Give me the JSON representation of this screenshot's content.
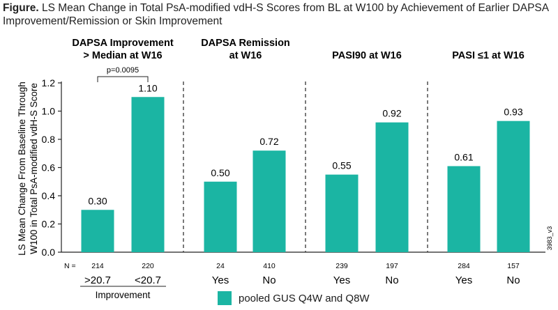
{
  "figure": {
    "label": "Figure.",
    "title": "LS Mean Change in Total PsA-modified vdH-S Scores from BL at W100 by Achievement of Earlier DAPSA Improvement/Remission or Skin Improvement"
  },
  "colors": {
    "bar": "#1bb5a3",
    "axis": "#222222",
    "divider": "#333333"
  },
  "footnote_code": "3983_v3",
  "legend": {
    "label": "pooled GUS Q4W and Q8W"
  },
  "chart_data": {
    "type": "bar",
    "ylabel": [
      "LS Mean Change From Baseline Through",
      "W100 in Total PsA-modified vdH-S Score"
    ],
    "ylim": [
      0,
      1.2
    ],
    "yticks": [
      "0.0",
      "0.2",
      "0.4",
      "0.6",
      "0.8",
      "1.0",
      "1.2"
    ],
    "n_label": "N =",
    "groups": [
      {
        "title": [
          "DAPSA Improvement",
          "> Median at W16"
        ],
        "subgroup_label": "Improvement",
        "annotation": "p=0.0095",
        "bars": [
          {
            "category": ">20.7",
            "value": 0.3,
            "label": "0.30",
            "n": "214"
          },
          {
            "category": "<20.7",
            "value": 1.1,
            "label": "1.10",
            "n": "220"
          }
        ]
      },
      {
        "title": [
          "DAPSA Remission",
          "at W16"
        ],
        "bars": [
          {
            "category": "Yes",
            "value": 0.5,
            "label": "0.50",
            "n": "24"
          },
          {
            "category": "No",
            "value": 0.72,
            "label": "0.72",
            "n": "410"
          }
        ]
      },
      {
        "title": [
          "PASI90 at W16"
        ],
        "bars": [
          {
            "category": "Yes",
            "value": 0.55,
            "label": "0.55",
            "n": "239"
          },
          {
            "category": "No",
            "value": 0.92,
            "label": "0.92",
            "n": "197"
          }
        ]
      },
      {
        "title": [
          "PASI ≤1 at W16"
        ],
        "bars": [
          {
            "category": "Yes",
            "value": 0.61,
            "label": "0.61",
            "n": "284"
          },
          {
            "category": "No",
            "value": 0.93,
            "label": "0.93",
            "n": "157"
          }
        ]
      }
    ]
  }
}
